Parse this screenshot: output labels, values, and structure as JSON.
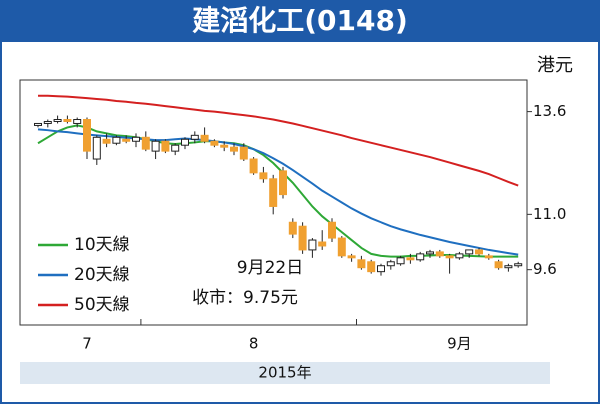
{
  "chart_data": {
    "type": "candlestick",
    "title": "建滔化工(0148)",
    "unit_label": "港元",
    "x_axis_title": "2015年",
    "categories": [
      null,
      null,
      null,
      null,
      null,
      "7",
      null,
      null,
      null,
      null,
      null,
      null,
      null,
      null,
      null,
      null,
      null,
      null,
      null,
      null,
      null,
      null,
      "8",
      null,
      null,
      null,
      null,
      null,
      null,
      null,
      null,
      null,
      null,
      null,
      null,
      null,
      null,
      null,
      null,
      null,
      null,
      null,
      null,
      "9月",
      null,
      null,
      null,
      null,
      null,
      null
    ],
    "open": [
      13.25,
      13.3,
      13.35,
      13.4,
      13.3,
      13.4,
      12.4,
      12.9,
      12.8,
      12.9,
      12.85,
      12.95,
      12.6,
      12.85,
      12.6,
      12.75,
      12.9,
      13.0,
      12.85,
      12.75,
      12.7,
      12.7,
      12.4,
      12.05,
      11.9,
      12.1,
      10.8,
      10.7,
      10.1,
      10.3,
      10.8,
      10.4,
      9.95,
      9.85,
      9.8,
      9.55,
      9.7,
      9.75,
      9.9,
      9.85,
      10.0,
      10.05,
      9.95,
      9.9,
      10.0,
      10.1,
      9.95,
      9.8,
      9.65,
      9.7
    ],
    "high": [
      13.3,
      13.4,
      13.5,
      13.5,
      13.45,
      13.45,
      13.0,
      13.05,
      13.0,
      13.0,
      13.05,
      13.1,
      12.9,
      12.9,
      12.8,
      12.95,
      13.1,
      13.2,
      12.9,
      12.85,
      12.8,
      12.8,
      12.45,
      12.2,
      12.0,
      12.2,
      10.9,
      10.8,
      10.4,
      10.6,
      10.9,
      10.45,
      10.0,
      9.95,
      9.85,
      9.75,
      9.85,
      9.95,
      10.0,
      10.05,
      10.1,
      10.1,
      10.0,
      10.05,
      10.1,
      10.15,
      10.0,
      9.85,
      9.75,
      9.8
    ],
    "low": [
      13.2,
      13.2,
      13.3,
      13.3,
      13.2,
      12.4,
      12.25,
      12.7,
      12.75,
      12.8,
      12.7,
      12.6,
      12.4,
      12.55,
      12.5,
      12.65,
      12.8,
      12.8,
      12.7,
      12.6,
      12.5,
      12.35,
      12.0,
      11.8,
      11.0,
      11.4,
      10.4,
      10.0,
      9.9,
      10.1,
      10.3,
      9.9,
      9.8,
      9.6,
      9.5,
      9.45,
      9.6,
      9.7,
      9.75,
      9.8,
      9.9,
      9.9,
      9.5,
      9.85,
      9.9,
      9.95,
      9.85,
      9.6,
      9.55,
      9.65
    ],
    "close": [
      13.3,
      13.35,
      13.4,
      13.35,
      13.4,
      12.6,
      12.95,
      12.8,
      12.95,
      12.85,
      12.95,
      12.65,
      12.85,
      12.6,
      12.75,
      12.9,
      13.0,
      12.85,
      12.75,
      12.7,
      12.6,
      12.4,
      12.05,
      11.9,
      11.2,
      11.5,
      10.5,
      10.1,
      10.35,
      10.2,
      10.4,
      9.95,
      9.9,
      9.65,
      9.55,
      9.7,
      9.8,
      9.9,
      9.85,
      10.0,
      10.05,
      9.95,
      9.9,
      10.0,
      10.1,
      10.0,
      9.9,
      9.65,
      9.7,
      9.75
    ],
    "up_color": "#ffffff",
    "down_color": "#f0a030",
    "series": [
      {
        "name": "10天線",
        "color": "#2ea836",
        "values": [
          12.8,
          12.95,
          13.1,
          13.2,
          13.25,
          13.2,
          13.1,
          13.05,
          13.0,
          12.98,
          12.95,
          12.9,
          12.85,
          12.8,
          12.78,
          12.8,
          12.82,
          12.85,
          12.85,
          12.82,
          12.8,
          12.75,
          12.65,
          12.5,
          12.3,
          12.05,
          11.8,
          11.5,
          11.2,
          10.95,
          10.75,
          10.55,
          10.35,
          10.15,
          10.0,
          9.95,
          9.93,
          9.93,
          9.95,
          9.95,
          9.96,
          9.97,
          9.97,
          9.96,
          9.95,
          9.94,
          9.93,
          9.93,
          9.93,
          9.93
        ]
      },
      {
        "name": "20天線",
        "color": "#1f6fc0",
        "values": [
          13.15,
          13.13,
          13.1,
          13.08,
          13.05,
          13.02,
          13.0,
          12.98,
          12.96,
          12.94,
          12.92,
          12.9,
          12.88,
          12.88,
          12.9,
          12.92,
          12.9,
          12.88,
          12.85,
          12.82,
          12.78,
          12.72,
          12.65,
          12.55,
          12.42,
          12.28,
          12.12,
          11.95,
          11.78,
          11.6,
          11.45,
          11.3,
          11.15,
          11.02,
          10.9,
          10.8,
          10.7,
          10.62,
          10.55,
          10.48,
          10.42,
          10.36,
          10.3,
          10.25,
          10.2,
          10.15,
          10.1,
          10.06,
          10.02,
          9.98
        ]
      },
      {
        "name": "50天線",
        "color": "#d42020",
        "values": [
          14.0,
          14.0,
          13.99,
          13.98,
          13.96,
          13.94,
          13.92,
          13.9,
          13.87,
          13.85,
          13.82,
          13.8,
          13.77,
          13.74,
          13.71,
          13.68,
          13.65,
          13.62,
          13.6,
          13.57,
          13.54,
          13.51,
          13.48,
          13.44,
          13.4,
          13.35,
          13.3,
          13.24,
          13.18,
          13.12,
          13.06,
          13.0,
          12.93,
          12.87,
          12.81,
          12.75,
          12.69,
          12.63,
          12.57,
          12.51,
          12.45,
          12.38,
          12.31,
          12.24,
          12.17,
          12.1,
          12.02,
          11.92,
          11.82,
          11.73
        ]
      }
    ],
    "annotations": [
      "9月22日",
      "收市：9.75元"
    ],
    "ylim": [
      8.2,
      14.4
    ],
    "yticks": [
      13.6,
      {
        "value": 11,
        "label": "11.0"
      },
      9.6
    ]
  }
}
